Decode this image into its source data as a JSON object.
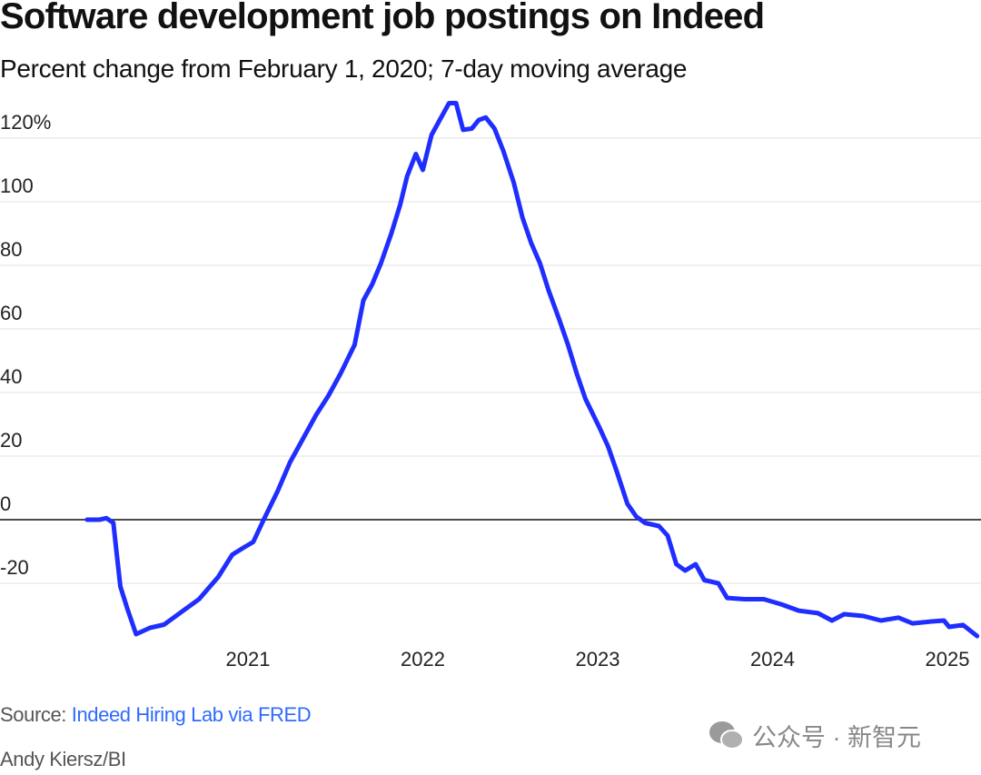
{
  "chart_data": {
    "type": "line",
    "title": "Software development job postings on Indeed",
    "subtitle": "Percent change from February 1, 2020; 7-day moving average",
    "xlabel": "",
    "ylabel": "",
    "xlim": [
      2020.0,
      2025.2
    ],
    "ylim": [
      -40,
      130
    ],
    "grid": true,
    "y_ticks": [
      {
        "value": 120,
        "label": "120%"
      },
      {
        "value": 100,
        "label": "100"
      },
      {
        "value": 80,
        "label": "80"
      },
      {
        "value": 60,
        "label": "60"
      },
      {
        "value": 40,
        "label": "40"
      },
      {
        "value": 20,
        "label": "20"
      },
      {
        "value": 0,
        "label": "0"
      },
      {
        "value": -20,
        "label": "-20"
      }
    ],
    "x_ticks": [
      {
        "value": 2021,
        "label": "2021"
      },
      {
        "value": 2022,
        "label": "2022"
      },
      {
        "value": 2023,
        "label": "2023"
      },
      {
        "value": 2024,
        "label": "2024"
      },
      {
        "value": 2025,
        "label": "2025"
      }
    ],
    "series": [
      {
        "name": "Software development",
        "color": "#1f2eff",
        "points": [
          [
            2020.08,
            0
          ],
          [
            2020.15,
            0
          ],
          [
            2020.19,
            0.5
          ],
          [
            2020.23,
            -1
          ],
          [
            2020.25,
            -11
          ],
          [
            2020.27,
            -21
          ],
          [
            2020.31,
            -28
          ],
          [
            2020.36,
            -36
          ],
          [
            2020.44,
            -34
          ],
          [
            2020.52,
            -33
          ],
          [
            2020.62,
            -29
          ],
          [
            2020.72,
            -25
          ],
          [
            2020.83,
            -18
          ],
          [
            2020.91,
            -11
          ],
          [
            2020.98,
            -8.6
          ],
          [
            2021.03,
            -7
          ],
          [
            2021.09,
            0
          ],
          [
            2021.17,
            9
          ],
          [
            2021.24,
            18
          ],
          [
            2021.32,
            26
          ],
          [
            2021.39,
            33
          ],
          [
            2021.46,
            39
          ],
          [
            2021.53,
            46
          ],
          [
            2021.61,
            55
          ],
          [
            2021.66,
            69
          ],
          [
            2021.71,
            74
          ],
          [
            2021.76,
            80.6
          ],
          [
            2021.82,
            90
          ],
          [
            2021.87,
            99
          ],
          [
            2021.91,
            108
          ],
          [
            2021.96,
            115
          ],
          [
            2022.0,
            110
          ],
          [
            2022.05,
            121
          ],
          [
            2022.1,
            126
          ],
          [
            2022.15,
            131
          ],
          [
            2022.19,
            131
          ],
          [
            2022.23,
            122.6
          ],
          [
            2022.28,
            123
          ],
          [
            2022.32,
            125.7
          ],
          [
            2022.36,
            126.5
          ],
          [
            2022.41,
            123
          ],
          [
            2022.46,
            116
          ],
          [
            2022.52,
            106
          ],
          [
            2022.57,
            95
          ],
          [
            2022.62,
            87
          ],
          [
            2022.67,
            80.6
          ],
          [
            2022.72,
            72
          ],
          [
            2022.78,
            63
          ],
          [
            2022.83,
            55
          ],
          [
            2022.88,
            46
          ],
          [
            2022.93,
            38
          ],
          [
            2023.01,
            29
          ],
          [
            2023.06,
            23
          ],
          [
            2023.11,
            15
          ],
          [
            2023.17,
            5
          ],
          [
            2023.22,
            1
          ],
          [
            2023.27,
            -1
          ],
          [
            2023.35,
            -2
          ],
          [
            2023.4,
            -5
          ],
          [
            2023.45,
            -14
          ],
          [
            2023.5,
            -16
          ],
          [
            2023.56,
            -14
          ],
          [
            2023.61,
            -19
          ],
          [
            2023.69,
            -20
          ],
          [
            2023.74,
            -24.6
          ],
          [
            2023.84,
            -25
          ],
          [
            2023.95,
            -25
          ],
          [
            2024.05,
            -26.6
          ],
          [
            2024.15,
            -28.6
          ],
          [
            2024.26,
            -29.4
          ],
          [
            2024.34,
            -31.7
          ],
          [
            2024.41,
            -29.7
          ],
          [
            2024.52,
            -30.3
          ],
          [
            2024.62,
            -31.7
          ],
          [
            2024.72,
            -30.8
          ],
          [
            2024.8,
            -32.6
          ],
          [
            2024.91,
            -32
          ],
          [
            2024.98,
            -31.7
          ],
          [
            2025.01,
            -33.7
          ],
          [
            2025.09,
            -33.1
          ],
          [
            2025.17,
            -36.6
          ]
        ]
      }
    ]
  },
  "footer": {
    "source_prefix": "Source: ",
    "source_link": "Indeed Hiring Lab via FRED",
    "credit": "Andy Kiersz/BI",
    "watermark": "公众号 · 新智元"
  },
  "colors": {
    "line": "#1f2eff",
    "grid": "#e2e2e2",
    "zero": "#111111",
    "link": "#2f6bff"
  }
}
